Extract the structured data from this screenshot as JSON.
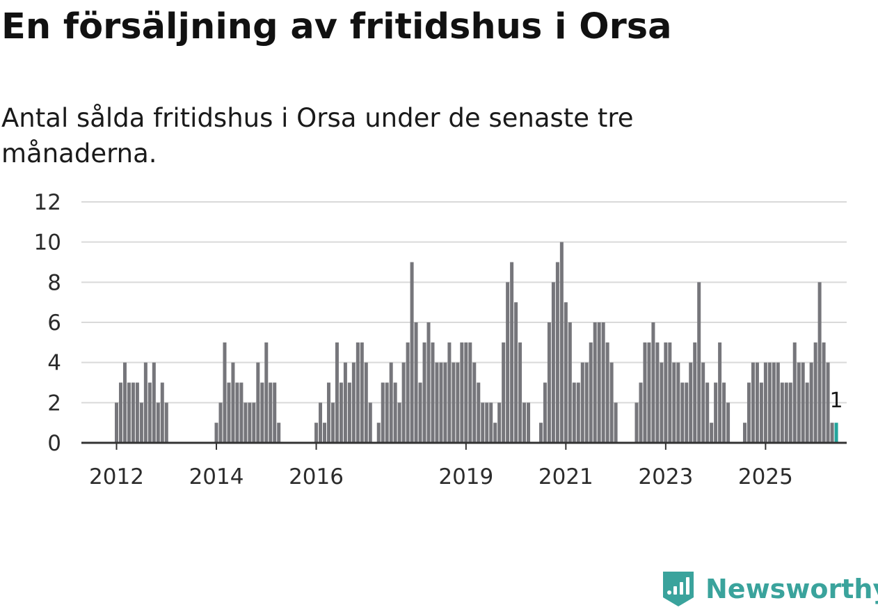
{
  "title": "En försäljning av fritidshus i Orsa",
  "subtitle": "Antal sålda fritidshus i Orsa under de senaste tre månaderna.",
  "brand": {
    "name": "Newsworthy",
    "color": "#3aa39c"
  },
  "colors": {
    "bar": "#76767b",
    "highlight": "#23a59c",
    "grid": "#d9d9d9",
    "axis": "#333333"
  },
  "chart_data": {
    "type": "bar",
    "x_start": "2012-01",
    "x_interval": "month",
    "values": [
      2,
      3,
      4,
      3,
      3,
      3,
      2,
      4,
      3,
      4,
      2,
      3,
      2,
      0,
      0,
      0,
      0,
      0,
      0,
      0,
      0,
      0,
      0,
      0,
      1,
      2,
      5,
      3,
      4,
      3,
      3,
      2,
      2,
      2,
      4,
      3,
      5,
      3,
      3,
      1,
      0,
      0,
      0,
      0,
      0,
      0,
      0,
      0,
      1,
      2,
      1,
      3,
      2,
      5,
      3,
      4,
      3,
      4,
      5,
      5,
      4,
      2,
      0,
      1,
      3,
      3,
      4,
      3,
      2,
      4,
      5,
      9,
      6,
      3,
      5,
      6,
      5,
      4,
      4,
      4,
      5,
      4,
      4,
      5,
      5,
      5,
      4,
      3,
      2,
      2,
      2,
      1,
      2,
      5,
      8,
      9,
      7,
      5,
      2,
      2,
      0,
      0,
      1,
      3,
      6,
      8,
      9,
      10,
      7,
      6,
      3,
      3,
      4,
      4,
      5,
      6,
      6,
      6,
      5,
      4,
      2,
      0,
      0,
      0,
      0,
      2,
      3,
      5,
      5,
      6,
      5,
      4,
      5,
      5,
      4,
      4,
      3,
      3,
      4,
      5,
      8,
      4,
      3,
      1,
      3,
      5,
      3,
      2,
      0,
      0,
      0,
      1,
      3,
      4,
      4,
      3,
      4,
      4,
      4,
      4,
      3,
      3,
      3,
      5,
      4,
      4,
      3,
      4,
      5,
      8,
      5,
      4,
      1,
      1
    ],
    "xticks": [
      "2012",
      "2014",
      "2016",
      "2019",
      "2021",
      "2023",
      "2025"
    ],
    "xlabel": "",
    "ylabel": "",
    "ylim": [
      0,
      12
    ],
    "yticks": [
      0,
      2,
      4,
      6,
      8,
      10,
      12
    ],
    "grid": true,
    "legend": "none",
    "annotation": {
      "label": "1",
      "value": 1
    }
  }
}
